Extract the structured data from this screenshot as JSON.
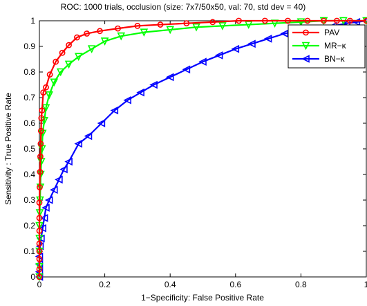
{
  "chart_data": {
    "type": "line",
    "title": "ROC: 1000 trials, occlusion (size: 7x7/50x50, val: 70, std dev = 40)",
    "xlabel": "1−Specificity: False Positive Rate",
    "ylabel": "Sensitivity : True Positive Rate",
    "xlim": [
      0,
      1
    ],
    "ylim": [
      0,
      1
    ],
    "xticks": [
      0,
      0.2,
      0.4,
      0.6,
      0.8,
      1
    ],
    "xtick_labels": [
      "0",
      "0.2",
      "0.4",
      "0.6",
      "0.8",
      "1"
    ],
    "yticks": [
      0,
      0.1,
      0.2,
      0.3,
      0.4,
      0.5,
      0.6,
      0.7,
      0.8,
      0.9,
      1
    ],
    "ytick_labels": [
      "0",
      "0.1",
      "0.2",
      "0.3",
      "0.4",
      "0.5",
      "0.6",
      "0.7",
      "0.8",
      "0.9",
      "1"
    ],
    "grid": false,
    "legend_position": "top-right",
    "series": [
      {
        "name": "PAV",
        "color": "#ff0000",
        "marker": "circle",
        "x": [
          0.0,
          0.0,
          0.0,
          0.0,
          0.0,
          0.0,
          0.0,
          0.0,
          0.001,
          0.002,
          0.003,
          0.004,
          0.005,
          0.006,
          0.008,
          0.012,
          0.02,
          0.032,
          0.05,
          0.07,
          0.09,
          0.115,
          0.145,
          0.185,
          0.24,
          0.3,
          0.37,
          0.45,
          0.53,
          0.61,
          0.69,
          0.76,
          0.82,
          0.87,
          0.91,
          0.95,
          1.0
        ],
        "y": [
          0.0,
          0.03,
          0.07,
          0.1,
          0.13,
          0.18,
          0.23,
          0.29,
          0.35,
          0.41,
          0.47,
          0.52,
          0.57,
          0.62,
          0.65,
          0.72,
          0.74,
          0.79,
          0.84,
          0.875,
          0.905,
          0.935,
          0.95,
          0.96,
          0.97,
          0.98,
          0.985,
          0.99,
          0.995,
          1.0,
          1.0,
          1.0,
          1.0,
          1.0,
          1.0,
          1.0,
          1.0
        ]
      },
      {
        "name": "MR−κ",
        "color": "#00ff00",
        "marker": "triangle-down",
        "x": [
          0.0,
          0.0,
          0.0,
          0.0,
          0.0,
          0.001,
          0.002,
          0.003,
          0.004,
          0.006,
          0.008,
          0.01,
          0.015,
          0.02,
          0.03,
          0.045,
          0.065,
          0.09,
          0.12,
          0.16,
          0.2,
          0.25,
          0.32,
          0.4,
          0.48,
          0.56,
          0.64,
          0.72,
          0.8,
          0.87,
          0.93,
          1.0
        ],
        "y": [
          0.0,
          0.04,
          0.1,
          0.15,
          0.2,
          0.25,
          0.3,
          0.35,
          0.4,
          0.45,
          0.5,
          0.56,
          0.61,
          0.66,
          0.71,
          0.76,
          0.8,
          0.83,
          0.86,
          0.89,
          0.92,
          0.94,
          0.955,
          0.965,
          0.975,
          0.98,
          0.985,
          0.99,
          0.995,
          1.0,
          1.0,
          1.0
        ]
      },
      {
        "name": "BN−κ",
        "color": "#0000ff",
        "marker": "triangle-left",
        "x": [
          0.0,
          0.0,
          0.0,
          0.0,
          0.002,
          0.005,
          0.01,
          0.015,
          0.02,
          0.03,
          0.045,
          0.06,
          0.075,
          0.09,
          0.12,
          0.15,
          0.19,
          0.23,
          0.27,
          0.31,
          0.35,
          0.4,
          0.45,
          0.5,
          0.55,
          0.6,
          0.65,
          0.7,
          0.75,
          0.8,
          0.85,
          0.9,
          0.94,
          0.97,
          1.0
        ],
        "y": [
          0.0,
          0.02,
          0.05,
          0.08,
          0.12,
          0.15,
          0.19,
          0.23,
          0.27,
          0.3,
          0.34,
          0.38,
          0.42,
          0.45,
          0.52,
          0.55,
          0.6,
          0.65,
          0.69,
          0.72,
          0.75,
          0.78,
          0.81,
          0.84,
          0.865,
          0.89,
          0.91,
          0.93,
          0.95,
          0.96,
          0.97,
          0.98,
          0.99,
          0.995,
          1.0
        ]
      }
    ]
  }
}
